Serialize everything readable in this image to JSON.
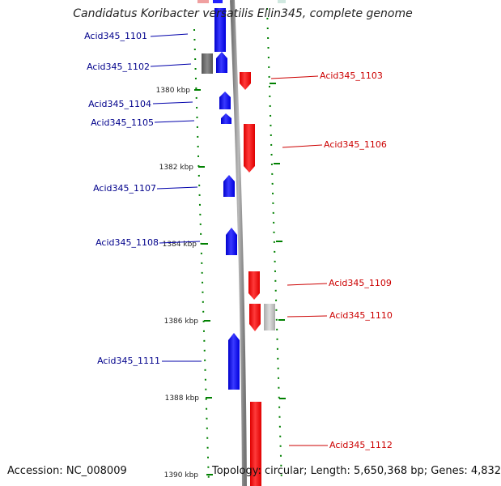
{
  "title": "Candidatus Koribacter versatilis Ellin345, complete genome",
  "footer": {
    "accession": "Accession: NC_008009",
    "topology": "Topology: circular; Length: 5,650,368 bp; Genes: 4,832"
  },
  "colors": {
    "forward_gene": "#0000ff",
    "reverse_gene": "#ff0000",
    "pseudo_gene_dark": "#666666",
    "pseudo_gene_light": "#bbbbbb",
    "backbone": "#888888",
    "ticks": "#008000",
    "forward_label": "#00008b",
    "reverse_label": "#cc0000"
  },
  "scale": {
    "unit": "kbp",
    "labels": [
      "1380 kbp",
      "1382 kbp",
      "1384 kbp",
      "1386 kbp",
      "1388 kbp",
      "1390 kbp"
    ]
  },
  "genes": [
    {
      "name": "Acid345_1101",
      "strand": "+",
      "kind": "cds"
    },
    {
      "name": "Acid345_1102",
      "strand": "+",
      "kind": "pseudo"
    },
    {
      "name": "Acid345_1103",
      "strand": "-",
      "kind": "cds"
    },
    {
      "name": "Acid345_1104",
      "strand": "+",
      "kind": "cds"
    },
    {
      "name": "Acid345_1105",
      "strand": "+",
      "kind": "cds"
    },
    {
      "name": "Acid345_1106",
      "strand": "-",
      "kind": "cds"
    },
    {
      "name": "Acid345_1107",
      "strand": "+",
      "kind": "cds"
    },
    {
      "name": "Acid345_1108",
      "strand": "+",
      "kind": "cds"
    },
    {
      "name": "Acid345_1109",
      "strand": "-",
      "kind": "cds"
    },
    {
      "name": "Acid345_1110",
      "strand": "-",
      "kind": "cds"
    },
    {
      "name": "Acid345_1111",
      "strand": "+",
      "kind": "cds"
    },
    {
      "name": "Acid345_1112",
      "strand": "-",
      "kind": "cds"
    }
  ]
}
